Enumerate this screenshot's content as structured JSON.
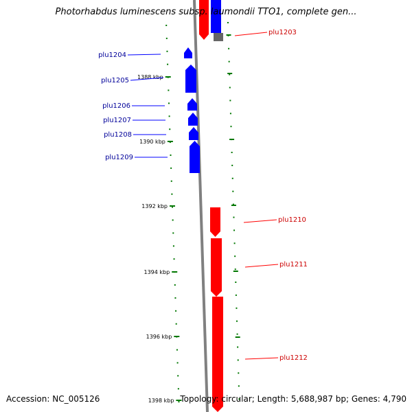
{
  "title": "Photorhabdus luminescens subsp. laumondii TTO1, complete gen...",
  "footer": {
    "accession": "Accession: NC_005126",
    "summary": "Topology: circular; Length: 5,688,987 bp; Genes: 4,790"
  },
  "colors": {
    "forward_strand": "#0000ff",
    "reverse_strand": "#ff0000",
    "backbone": "#808080",
    "tick": "#007700",
    "forward_label": "#000099",
    "reverse_label": "#cc0000"
  },
  "scale": {
    "unit": "kbp",
    "labels": [
      "1388 kbp",
      "1390 kbp",
      "1392 kbp",
      "1394 kbp",
      "1396 kbp",
      "1398 kbp"
    ]
  },
  "genes": [
    {
      "name": "plu1203",
      "strand": "reverse"
    },
    {
      "name": "plu1204",
      "strand": "forward"
    },
    {
      "name": "plu1205",
      "strand": "forward"
    },
    {
      "name": "plu1206",
      "strand": "forward"
    },
    {
      "name": "plu1207",
      "strand": "forward"
    },
    {
      "name": "plu1208",
      "strand": "forward"
    },
    {
      "name": "plu1209",
      "strand": "forward"
    },
    {
      "name": "plu1210",
      "strand": "reverse"
    },
    {
      "name": "plu1211",
      "strand": "reverse"
    },
    {
      "name": "plu1212",
      "strand": "reverse"
    }
  ]
}
